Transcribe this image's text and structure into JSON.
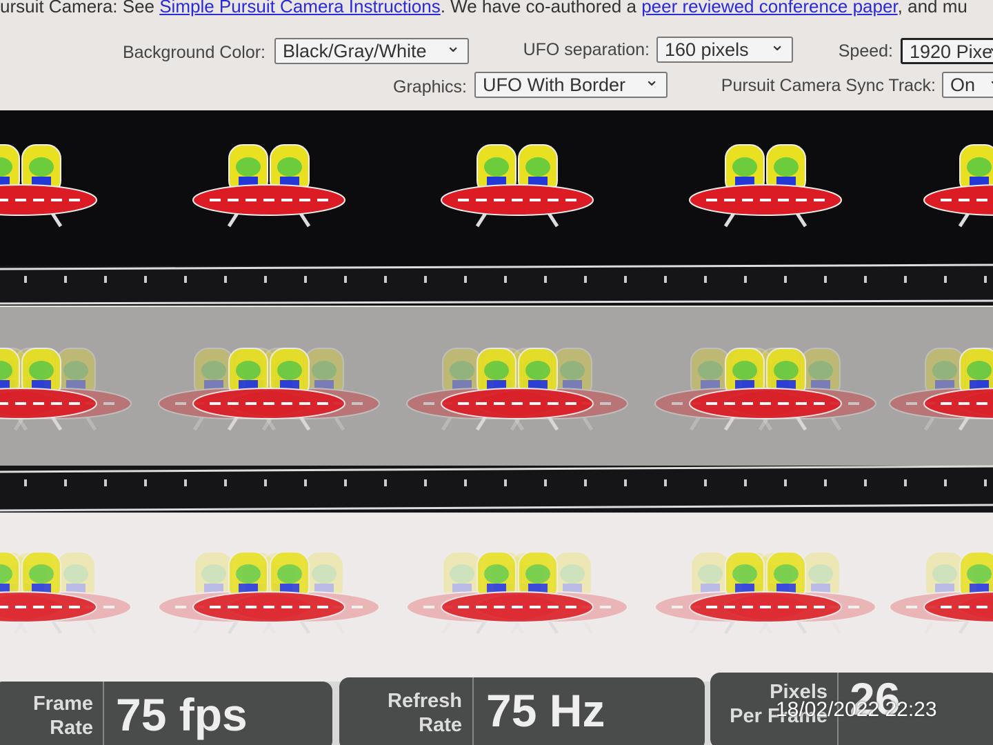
{
  "header": {
    "text_before": "ursuit Camera: See ",
    "link1": "Simple Pursuit Camera Instructions",
    "text_middle": ". We have co-authored a ",
    "link2": "peer reviewed conference paper",
    "text_after": ", and mu"
  },
  "controls": [
    {
      "label": "Background Color:",
      "value": "Black/Gray/White"
    },
    {
      "label": "UFO separation:",
      "value": "160 pixels"
    },
    {
      "label": "Speed:",
      "value": "1920 Pixe"
    },
    {
      "label": "Graphics:",
      "value": "UFO With Border"
    },
    {
      "label": "Pursuit Camera Sync Track:",
      "value": "On"
    }
  ],
  "stats": [
    {
      "label_line1": "Frame",
      "label_line2": "Rate",
      "value": "75 fps"
    },
    {
      "label_line1": "Refresh",
      "label_line2": "Rate",
      "value": "75 Hz"
    },
    {
      "label_line1": "Pixels",
      "label_line2": "Per Frame",
      "value": "26"
    }
  ],
  "timestamp": "18/02/2022 22:23"
}
